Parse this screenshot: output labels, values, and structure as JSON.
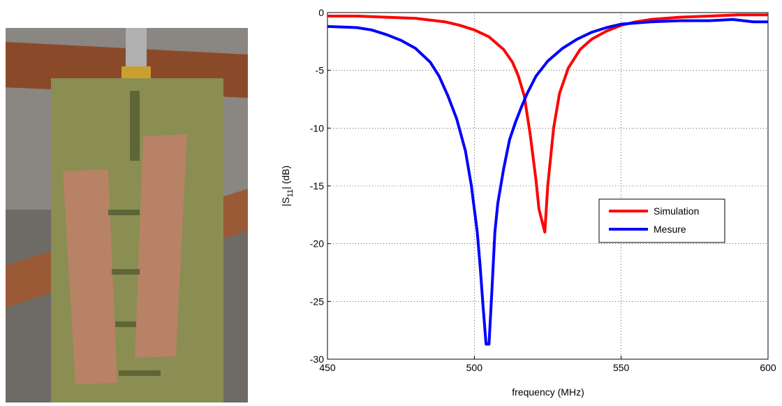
{
  "chart_data": {
    "type": "line",
    "xlabel": "frequency (MHz)",
    "ylabel": [
      "|S",
      "11",
      "| (dB)"
    ],
    "xlim": [
      450,
      600
    ],
    "xticks": [
      450,
      500,
      550,
      600
    ],
    "ylim": [
      -30,
      0
    ],
    "yticks": [
      0,
      -5,
      -10,
      -15,
      -20,
      -25,
      -30
    ],
    "grid": true,
    "legend": "center right",
    "series": [
      {
        "name": "Simulation",
        "color": "#ff0000",
        "x": [
          450,
          460,
          470,
          480,
          490,
          495,
          500,
          505,
          510,
          513,
          515,
          517,
          519,
          521,
          522,
          524,
          525,
          527,
          529,
          532,
          536,
          540,
          545,
          550,
          555,
          560,
          570,
          580,
          590,
          600
        ],
        "values": [
          -0.3,
          -0.3,
          -0.4,
          -0.5,
          -0.8,
          -1.1,
          -1.5,
          -2.1,
          -3.2,
          -4.3,
          -5.5,
          -7.2,
          -10.5,
          -14.5,
          -17,
          -19,
          -15,
          -10,
          -7,
          -4.8,
          -3.2,
          -2.3,
          -1.6,
          -1.1,
          -0.8,
          -0.6,
          -0.4,
          -0.3,
          -0.2,
          -0.2
        ]
      },
      {
        "name": "Mesure",
        "color": "#0000ff",
        "x": [
          450,
          460,
          465,
          470,
          475,
          480,
          485,
          488,
          491,
          494,
          497,
          499,
          501,
          502,
          503,
          504,
          505,
          506,
          507,
          508,
          510,
          512,
          514,
          516,
          518,
          521,
          525,
          530,
          535,
          540,
          545,
          550,
          560,
          570,
          580,
          588,
          595,
          600
        ],
        "values": [
          -1.2,
          -1.3,
          -1.5,
          -1.9,
          -2.4,
          -3.1,
          -4.3,
          -5.5,
          -7.2,
          -9.2,
          -12,
          -15,
          -19,
          -22,
          -25.5,
          -28.7,
          -28.7,
          -24,
          -19,
          -16.5,
          -13.5,
          -11,
          -9.5,
          -8.2,
          -7,
          -5.5,
          -4.2,
          -3.1,
          -2.3,
          -1.7,
          -1.3,
          -1,
          -0.8,
          -0.7,
          -0.7,
          -0.6,
          -0.8,
          -0.8
        ]
      }
    ]
  }
}
